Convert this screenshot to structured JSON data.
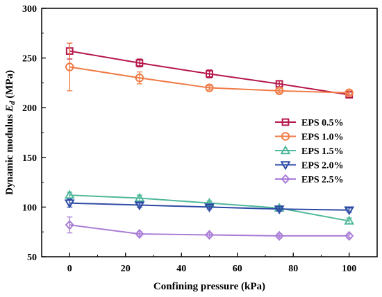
{
  "chart_data": {
    "type": "line",
    "title": "",
    "xlabel": "Confining pressure (kPa)",
    "ylabel_main": "Dynamic modulus ",
    "ylabel_sym": "E",
    "ylabel_sub": "d",
    "ylabel_unit": " (MPa)",
    "xlim": [
      -10,
      110
    ],
    "ylim": [
      50,
      300
    ],
    "xticks": [
      0,
      20,
      40,
      60,
      80,
      100
    ],
    "yticks": [
      50,
      100,
      150,
      200,
      250,
      300
    ],
    "grid": false,
    "legend_position": "right",
    "x": [
      0,
      25,
      50,
      75,
      100
    ],
    "series": [
      {
        "name": "EPS 0.5%",
        "color": "#b5174a",
        "marker": "square",
        "values": [
          257,
          245,
          234,
          224,
          213
        ],
        "errors": [
          8,
          4,
          4,
          3,
          3
        ]
      },
      {
        "name": "EPS 1.0%",
        "color": "#f07a45",
        "marker": "circle",
        "values": [
          241,
          230,
          220,
          217,
          215
        ],
        "errors": [
          24,
          6,
          2,
          2,
          2
        ]
      },
      {
        "name": "EPS 1.5%",
        "color": "#4fb89a",
        "marker": "triangle-up",
        "values": [
          112,
          109,
          104,
          99,
          86
        ],
        "errors": [
          3,
          3,
          2,
          2,
          3
        ]
      },
      {
        "name": "EPS 2.0%",
        "color": "#2e4aa5",
        "marker": "triangle-down",
        "values": [
          104,
          102,
          100,
          98,
          97
        ],
        "errors": [
          4,
          2,
          2,
          2,
          2
        ]
      },
      {
        "name": "EPS 2.5%",
        "color": "#a97cd6",
        "marker": "diamond",
        "values": [
          82,
          73,
          72,
          71,
          71
        ],
        "errors": [
          8,
          2,
          2,
          2,
          2
        ]
      }
    ]
  }
}
